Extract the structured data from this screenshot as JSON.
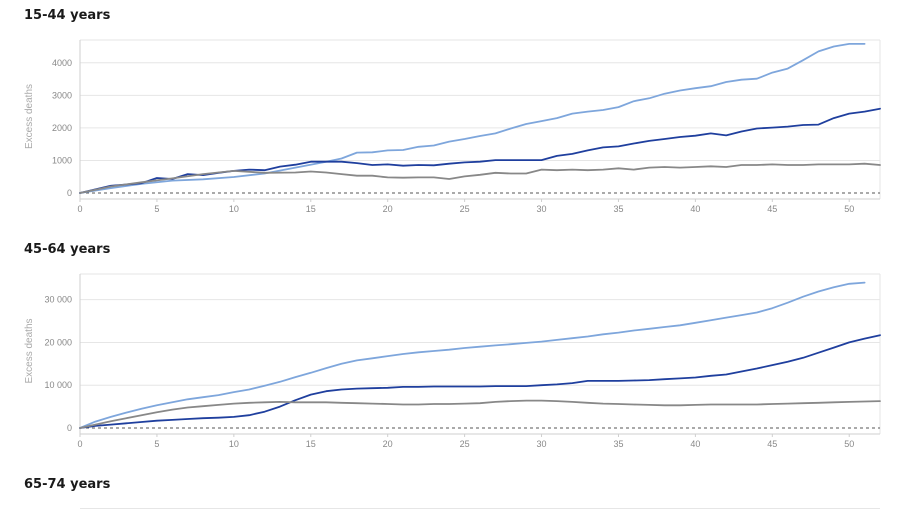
{
  "chart_data": [
    {
      "type": "line",
      "title": "15-44 years",
      "ylabel": "Excess deaths",
      "xlim": [
        0,
        52
      ],
      "ylim": [
        0,
        4700
      ],
      "x_ticks": [
        0,
        5,
        10,
        15,
        20,
        25,
        30,
        35,
        40,
        45,
        50
      ],
      "y_ticks": [
        0,
        1000,
        2000,
        3000,
        4000
      ],
      "y_tick_labels": [
        "0",
        "1000",
        "2000",
        "3000",
        "4000"
      ],
      "zero_line": "dashed",
      "grid": "horizontal",
      "series": [
        {
          "color": "#7ea6dc",
          "x": [
            0,
            2,
            4,
            6,
            8,
            10,
            12,
            14,
            16,
            17,
            18,
            19,
            20,
            21,
            22,
            23,
            24,
            25,
            26,
            27,
            28,
            29,
            30,
            31,
            32,
            33,
            34,
            35,
            36,
            37,
            38,
            39,
            40,
            41,
            42,
            43,
            44,
            45,
            46,
            47,
            48,
            49,
            50,
            51
          ],
          "values": [
            0,
            150,
            280,
            380,
            420,
            490,
            600,
            780,
            960,
            1060,
            1240,
            1250,
            1310,
            1320,
            1420,
            1460,
            1580,
            1660,
            1750,
            1830,
            1980,
            2120,
            2210,
            2300,
            2440,
            2500,
            2550,
            2640,
            2820,
            2910,
            3050,
            3150,
            3220,
            3280,
            3410,
            3480,
            3510,
            3700,
            3820,
            4080,
            4350,
            4500,
            4580,
            4580
          ]
        },
        {
          "color": "#1f3f9e",
          "x": [
            0,
            2,
            4,
            5,
            6,
            7,
            8,
            9,
            10,
            11,
            12,
            13,
            14,
            15,
            16,
            17,
            18,
            19,
            20,
            21,
            22,
            23,
            24,
            25,
            26,
            27,
            28,
            29,
            30,
            31,
            32,
            33,
            34,
            35,
            36,
            37,
            38,
            39,
            40,
            41,
            42,
            43,
            44,
            45,
            46,
            47,
            48,
            49,
            50,
            51,
            52
          ],
          "values": [
            0,
            220,
            300,
            460,
            430,
            580,
            550,
            620,
            680,
            720,
            700,
            810,
            870,
            960,
            960,
            960,
            920,
            860,
            880,
            840,
            860,
            850,
            900,
            940,
            960,
            1010,
            1010,
            1010,
            1010,
            1140,
            1200,
            1310,
            1400,
            1430,
            1520,
            1600,
            1660,
            1720,
            1760,
            1830,
            1770,
            1890,
            1980,
            2010,
            2040,
            2090,
            2100,
            2300,
            2440,
            2500,
            2590
          ]
        },
        {
          "color": "#888888",
          "x": [
            0,
            2,
            4,
            6,
            8,
            10,
            12,
            14,
            15,
            16,
            17,
            18,
            19,
            20,
            21,
            22,
            23,
            24,
            25,
            26,
            27,
            28,
            29,
            30,
            31,
            32,
            33,
            34,
            35,
            36,
            37,
            38,
            39,
            40,
            41,
            42,
            43,
            44,
            45,
            46,
            47,
            48,
            49,
            50,
            51,
            52
          ],
          "values": [
            0,
            200,
            330,
            450,
            580,
            680,
            620,
            630,
            660,
            630,
            580,
            530,
            530,
            480,
            470,
            480,
            480,
            430,
            510,
            560,
            620,
            600,
            600,
            720,
            700,
            720,
            700,
            720,
            760,
            720,
            780,
            800,
            780,
            800,
            820,
            800,
            860,
            860,
            880,
            860,
            860,
            880,
            880,
            880,
            900,
            860
          ]
        }
      ]
    },
    {
      "type": "line",
      "title": "45-64 years",
      "ylabel": "Excess deaths",
      "xlim": [
        0,
        52
      ],
      "ylim": [
        0,
        36000
      ],
      "x_ticks": [
        0,
        5,
        10,
        15,
        20,
        25,
        30,
        35,
        40,
        45,
        50
      ],
      "y_ticks": [
        0,
        10000,
        20000,
        30000
      ],
      "y_tick_labels": [
        "0",
        "10 000",
        "20 000",
        "30 000"
      ],
      "zero_line": "dashed",
      "grid": "horizontal",
      "series": [
        {
          "color": "#7ea6dc",
          "x": [
            0,
            1,
            2,
            3,
            4,
            5,
            6,
            7,
            8,
            9,
            10,
            11,
            12,
            13,
            14,
            15,
            16,
            17,
            18,
            19,
            20,
            21,
            22,
            23,
            24,
            25,
            26,
            27,
            28,
            29,
            30,
            31,
            32,
            33,
            34,
            35,
            36,
            37,
            38,
            39,
            40,
            41,
            42,
            43,
            44,
            45,
            46,
            47,
            48,
            49,
            50,
            51
          ],
          "values": [
            0,
            1500,
            2600,
            3600,
            4500,
            5300,
            6000,
            6700,
            7200,
            7700,
            8400,
            9000,
            9900,
            10800,
            11900,
            12900,
            14000,
            15000,
            15800,
            16300,
            16800,
            17300,
            17700,
            18000,
            18300,
            18700,
            19000,
            19300,
            19600,
            19900,
            20200,
            20600,
            21000,
            21400,
            21900,
            22300,
            22800,
            23200,
            23600,
            24000,
            24600,
            25200,
            25800,
            26400,
            27000,
            28000,
            29300,
            30700,
            31900,
            32900,
            33700,
            34000
          ]
        },
        {
          "color": "#1f3f9e",
          "x": [
            0,
            1,
            2,
            3,
            4,
            5,
            6,
            7,
            8,
            9,
            10,
            11,
            12,
            13,
            14,
            15,
            16,
            17,
            18,
            19,
            20,
            21,
            22,
            23,
            24,
            25,
            26,
            27,
            28,
            29,
            30,
            31,
            32,
            33,
            34,
            35,
            36,
            37,
            38,
            39,
            40,
            41,
            42,
            43,
            44,
            45,
            46,
            47,
            48,
            49,
            50,
            51,
            52
          ],
          "values": [
            0,
            500,
            800,
            1100,
            1400,
            1700,
            1900,
            2100,
            2300,
            2400,
            2600,
            3000,
            3800,
            5000,
            6500,
            7800,
            8600,
            9000,
            9200,
            9300,
            9400,
            9600,
            9600,
            9700,
            9700,
            9700,
            9700,
            9800,
            9800,
            9800,
            10000,
            10200,
            10500,
            11000,
            11000,
            11000,
            11100,
            11200,
            11400,
            11600,
            11800,
            12200,
            12500,
            13200,
            13900,
            14700,
            15500,
            16400,
            17600,
            18800,
            20000,
            20900,
            21700
          ]
        },
        {
          "color": "#888888",
          "x": [
            0,
            1,
            2,
            3,
            4,
            5,
            6,
            7,
            8,
            9,
            10,
            11,
            12,
            13,
            14,
            15,
            16,
            17,
            18,
            19,
            20,
            21,
            22,
            23,
            24,
            25,
            26,
            27,
            28,
            29,
            30,
            31,
            32,
            33,
            34,
            35,
            36,
            37,
            38,
            39,
            40,
            41,
            42,
            43,
            44,
            45,
            46,
            47,
            48,
            49,
            50,
            51,
            52
          ],
          "values": [
            0,
            800,
            1600,
            2300,
            3000,
            3700,
            4300,
            4800,
            5100,
            5400,
            5700,
            5900,
            6000,
            6100,
            6000,
            6000,
            6000,
            5900,
            5800,
            5700,
            5600,
            5500,
            5500,
            5600,
            5600,
            5700,
            5800,
            6100,
            6300,
            6400,
            6400,
            6300,
            6100,
            5900,
            5700,
            5600,
            5500,
            5400,
            5300,
            5300,
            5400,
            5500,
            5500,
            5500,
            5500,
            5600,
            5700,
            5800,
            5900,
            6000,
            6100,
            6200,
            6300
          ]
        }
      ]
    }
  ],
  "panel3": {
    "title": "65-74 years"
  }
}
